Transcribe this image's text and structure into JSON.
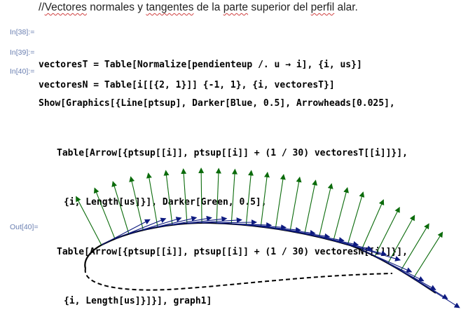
{
  "comment": {
    "text_before": "//",
    "w1": "Vectores",
    "t1": " normales y ",
    "w2": "tangentes",
    "t2": " de la ",
    "w3": "parte",
    "t3": " superior del ",
    "w4": "perfil",
    "t4": " alar."
  },
  "cells": [
    {
      "label": "In[38]:=",
      "line1": "vectoresT = Table[Normalize[pendienteup /. u → i], {i, us}]"
    },
    {
      "label": "In[39]:=",
      "line1": "vectoresN = Table[i[[{2, 1}]] {-1, 1}, {i, vectoresT}]"
    },
    {
      "label": "In[40]:=",
      "line1": "Show[Graphics[{Line[ptsup], Darker[Blue, 0.5], Arrowheads[0.025],",
      "line2": "Table[Arrow[{ptsup[[i]], ptsup[[i]] + (1 / 30) vectoresT[[i]]}],",
      "line3": "{i, Length[us]}], Darker[Green, 0.5],",
      "line4": "Table[Arrow[{ptsup[[i]], ptsup[[i]] + (1 / 30) vectoresN[[i]]}],",
      "line5": "{i, Length[us]}]}], graph1]"
    }
  ],
  "output": {
    "label": "Out[40]="
  },
  "colors": {
    "label": "#6a7fb1",
    "normal_arrows": "#0b6b0b",
    "tangent_arrows": "#0d1a80",
    "curve": "#000000"
  }
}
